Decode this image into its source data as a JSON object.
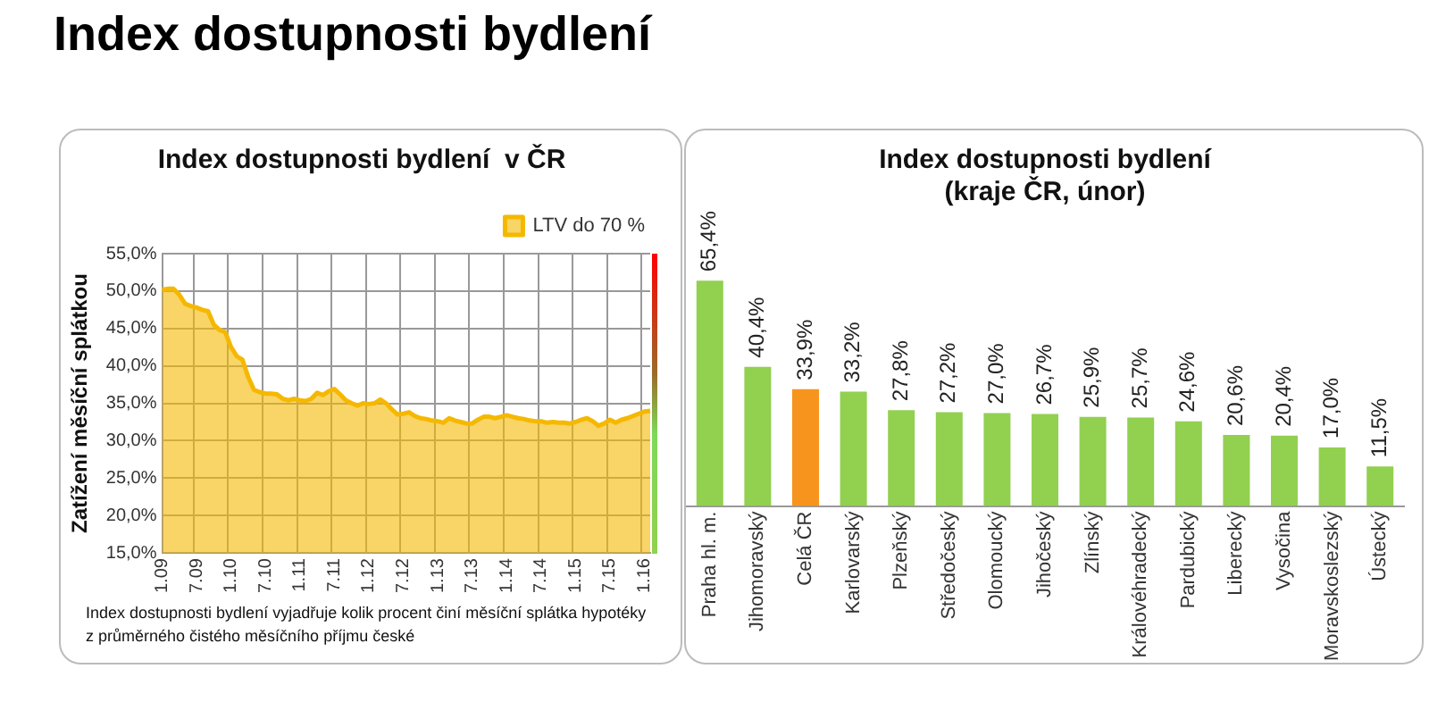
{
  "chart_data": [
    {
      "type": "other",
      "title": "Index dostupnosti bydlení"
    },
    {
      "type": "area",
      "title": "Index dostupnosti bydlení  v ČR",
      "ylabel": "Zatížení měsíční splátkou",
      "categories": [
        "1.09",
        null,
        null,
        null,
        null,
        null,
        "7.09",
        null,
        null,
        null,
        null,
        null,
        "1.10",
        null,
        null,
        null,
        null,
        null,
        "7.10",
        null,
        null,
        null,
        null,
        null,
        "1.11",
        null,
        null,
        null,
        null,
        null,
        "7.11",
        null,
        null,
        null,
        null,
        null,
        "1.12",
        null,
        null,
        null,
        null,
        null,
        "7.12",
        null,
        null,
        null,
        null,
        null,
        "1.13",
        null,
        null,
        null,
        null,
        null,
        "7.13",
        null,
        null,
        null,
        null,
        null,
        "1.14",
        null,
        null,
        null,
        null,
        null,
        "7.14",
        null,
        null,
        null,
        null,
        null,
        "1.15",
        null,
        null,
        null,
        null,
        null,
        "7.15",
        null,
        null,
        null,
        null,
        null,
        "1.16",
        null
      ],
      "series": [
        {
          "name": "LTV do 70 %",
          "color": "#f5b800",
          "values": [
            50.2,
            50.3,
            50.3,
            49.5,
            48.3,
            48.0,
            47.8,
            47.5,
            47.3,
            45.5,
            44.8,
            44.5,
            42.5,
            41.3,
            40.8,
            38.5,
            36.8,
            36.5,
            36.3,
            36.3,
            36.2,
            35.6,
            35.4,
            35.6,
            35.4,
            35.3,
            35.6,
            36.4,
            36.1,
            36.6,
            36.9,
            36.2,
            35.4,
            35.0,
            34.7,
            35.0,
            34.9,
            35.0,
            35.5,
            35.0,
            34.2,
            33.5,
            33.6,
            33.8,
            33.3,
            33.0,
            32.9,
            32.7,
            32.6,
            32.4,
            33.0,
            32.7,
            32.5,
            32.3,
            32.3,
            32.8,
            33.2,
            33.2,
            33.0,
            33.2,
            33.4,
            33.2,
            33.0,
            32.9,
            32.7,
            32.6,
            32.6,
            32.4,
            32.5,
            32.4,
            32.4,
            32.3,
            32.5,
            32.8,
            33.0,
            32.6,
            32.0,
            32.3,
            32.8,
            32.4,
            32.8,
            33.0,
            33.3,
            33.6,
            33.9,
            34.0
          ]
        }
      ],
      "ylim": [
        15,
        55
      ],
      "yticks": [
        {
          "value": 15,
          "label": "15,0%"
        },
        {
          "value": 20,
          "label": "20,0%"
        },
        {
          "value": 25,
          "label": "25,0%"
        },
        {
          "value": 30,
          "label": "30,0%"
        },
        {
          "value": 35,
          "label": "35,0%"
        },
        {
          "value": 40,
          "label": "40,0%"
        },
        {
          "value": 45,
          "label": "45,0%"
        },
        {
          "value": 50,
          "label": "50,0%"
        },
        {
          "value": 55,
          "label": "55,0%"
        }
      ],
      "grid": true,
      "legend": "top right",
      "annotations": [
        "Index dostupnosti bydlení vyjadřuje kolik procent činí měsíční splátka hypotéky z průměrného čistého měsíčního příjmu české"
      ]
    },
    {
      "type": "bar",
      "title": "Index dostupnosti bydlení\n(kraje ČR, únor)",
      "categories": [
        "Praha hl. m.",
        "Jihomoravský",
        "Celá ČR",
        "Karlovarský",
        "Plzeňský",
        "Středočeský",
        "Olomoucký",
        "Jihočeský",
        "Zlínský",
        "Královéhradecký",
        "Pardubický",
        "Liberecký",
        "Vysočina",
        "Moravskoslezský",
        "Ústecký"
      ],
      "values": [
        65.4,
        40.4,
        33.9,
        33.2,
        27.8,
        27.2,
        27.0,
        26.7,
        25.9,
        25.7,
        24.6,
        20.6,
        20.4,
        17.0,
        11.5
      ],
      "colors": [
        "#92d050",
        "#92d050",
        "#f7941d",
        "#92d050",
        "#92d050",
        "#92d050",
        "#92d050",
        "#92d050",
        "#92d050",
        "#92d050",
        "#92d050",
        "#92d050",
        "#92d050",
        "#92d050",
        "#92d050"
      ],
      "value_labels": [
        "65,4%",
        "40,4%",
        "33,9%",
        "33,2%",
        "27,8%",
        "27,2%",
        "27,0%",
        "26,7%",
        "25,9%",
        "25,7%",
        "24,6%",
        "20,6%",
        "20,4%",
        "17,0%",
        "11,5%"
      ],
      "tick_labels": "x"
    }
  ]
}
